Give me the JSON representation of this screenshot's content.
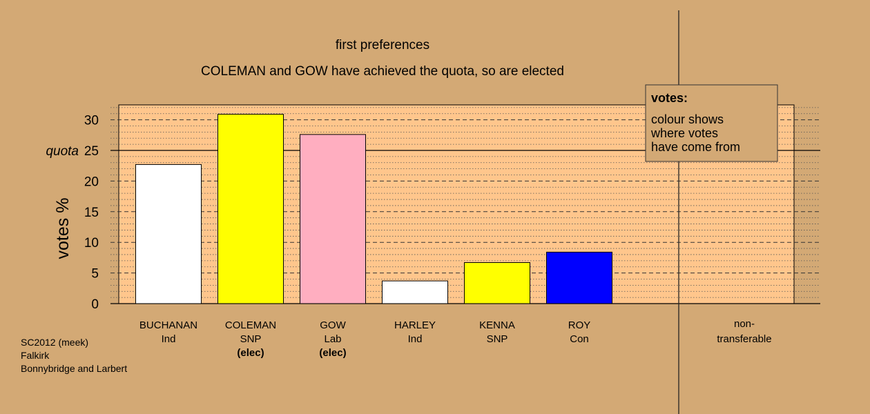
{
  "chart_data": {
    "type": "bar",
    "title": "first preferences",
    "subtitle": "COLEMAN and GOW have achieved the quota, so are elected",
    "ylabel": "votes %",
    "ylim": [
      0,
      32.5
    ],
    "yticks": [
      0,
      5,
      10,
      15,
      20,
      25,
      30
    ],
    "quota": 25,
    "quota_label": "quota",
    "categories": [
      {
        "name": "BUCHANAN",
        "party": "Ind",
        "status": "",
        "value": 22.7,
        "color": "#ffffff"
      },
      {
        "name": "COLEMAN",
        "party": "SNP",
        "status": "(elec)",
        "value": 30.9,
        "color": "#ffff00"
      },
      {
        "name": "GOW",
        "party": "Lab",
        "status": "(elec)",
        "value": 27.6,
        "color": "#ffaec0"
      },
      {
        "name": "HARLEY",
        "party": "Ind",
        "status": "",
        "value": 3.7,
        "color": "#ffffff"
      },
      {
        "name": "KENNA",
        "party": "SNP",
        "status": "",
        "value": 6.7,
        "color": "#ffff00"
      },
      {
        "name": "ROY",
        "party": "Con",
        "status": "",
        "value": 8.4,
        "color": "#0000ff"
      }
    ],
    "nontransferable": {
      "label_line1": "non-",
      "label_line2": "transferable",
      "value": 0
    },
    "legend": {
      "title": "votes:",
      "lines": [
        "colour shows",
        "where votes",
        "have come from"
      ],
      "position": "top-right"
    },
    "grid": true
  },
  "caption": {
    "line1": "SC2012 (meek)",
    "line2": "Falkirk",
    "line3": "Bonnybridge and Larbert"
  },
  "colors": {
    "background": "#d3a975",
    "plot_area": "#ffc68c",
    "grid": "#3a3a3a"
  }
}
